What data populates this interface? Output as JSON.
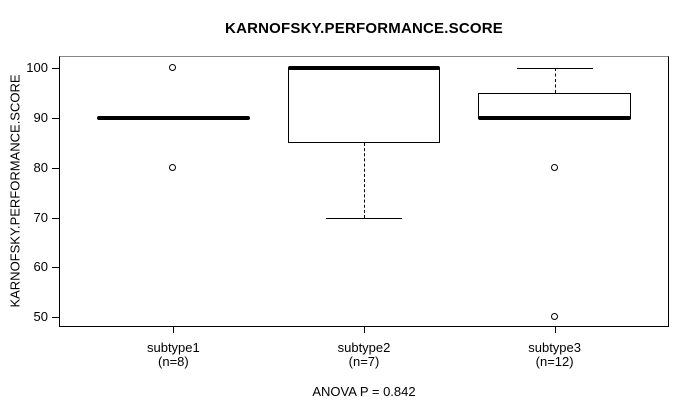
{
  "chart_data": {
    "type": "boxplot",
    "title": "KARNOFSKY.PERFORMANCE.SCORE",
    "ylabel": "KARNOFSKY.PERFORMANCE.SCORE",
    "annotation": "ANOVA P = 0.842",
    "ylim": [
      48,
      102.5
    ],
    "xlim": [
      0.4,
      3.6
    ],
    "yticks": [
      50,
      60,
      70,
      80,
      90,
      100
    ],
    "grid": false,
    "legend": false,
    "colors": {
      "line": "#000000",
      "background": "#ffffff"
    },
    "groups": [
      {
        "label": "subtype1",
        "sublabel": "(n=8)",
        "position": 1,
        "median": 90,
        "q1": 90,
        "q3": 90,
        "whisker_low": 90,
        "whisker_high": 90,
        "outliers": [
          100,
          80
        ]
      },
      {
        "label": "subtype2",
        "sublabel": "(n=7)",
        "position": 2,
        "median": 100,
        "q1": 85,
        "q3": 100,
        "whisker_low": 70,
        "whisker_high": 100,
        "outliers": []
      },
      {
        "label": "subtype3",
        "sublabel": "(n=12)",
        "position": 3,
        "median": 90,
        "q1": 90,
        "q3": 95,
        "whisker_low": 90,
        "whisker_high": 100,
        "outliers": [
          80,
          50
        ]
      }
    ]
  }
}
